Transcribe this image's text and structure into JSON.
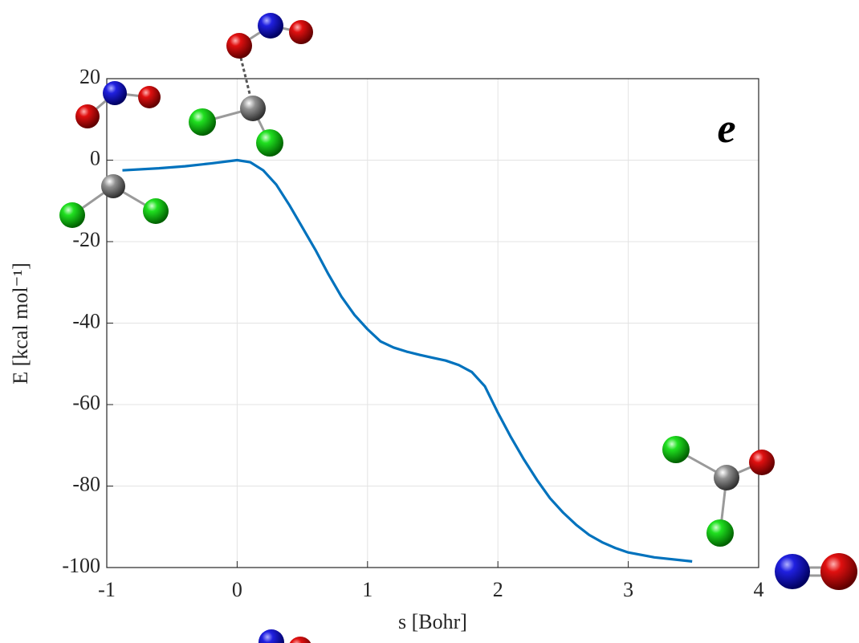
{
  "chart_data": {
    "type": "line",
    "annotation": "e",
    "xlabel": "s [Bohr]",
    "ylabel": "E [kcal mol⁻¹]",
    "x": [
      -0.88,
      -0.6,
      -0.4,
      -0.2,
      0,
      0.1,
      0.2,
      0.3,
      0.4,
      0.5,
      0.6,
      0.7,
      0.8,
      0.9,
      1.0,
      1.1,
      1.2,
      1.3,
      1.4,
      1.5,
      1.6,
      1.7,
      1.8,
      1.9,
      2.0,
      2.1,
      2.2,
      2.3,
      2.4,
      2.5,
      2.6,
      2.7,
      2.8,
      2.9,
      3.0,
      3.2,
      3.49
    ],
    "series": [
      {
        "color": "#0072bd",
        "values": [
          -2.5,
          -2,
          -1.5,
          -0.8,
          0,
          -0.5,
          -2.5,
          -6,
          -11,
          -16.5,
          -22,
          -28,
          -33.5,
          -38,
          -41.5,
          -44.5,
          -46,
          -47,
          -47.8,
          -48.5,
          -49.2,
          -50.3,
          -52,
          -55.5,
          -62,
          -68,
          -73.5,
          -78.5,
          -83,
          -86.5,
          -89.5,
          -92,
          -93.8,
          -95.2,
          -96.3,
          -97.5,
          -98.5
        ]
      }
    ],
    "xlim": [
      -1,
      4
    ],
    "xticks": [
      -1,
      0,
      1,
      2,
      3,
      4
    ],
    "ylim": [
      -100,
      20
    ],
    "yticks": [
      -100,
      -80,
      -60,
      -40,
      -20,
      0,
      20
    ],
    "grid": true
  }
}
